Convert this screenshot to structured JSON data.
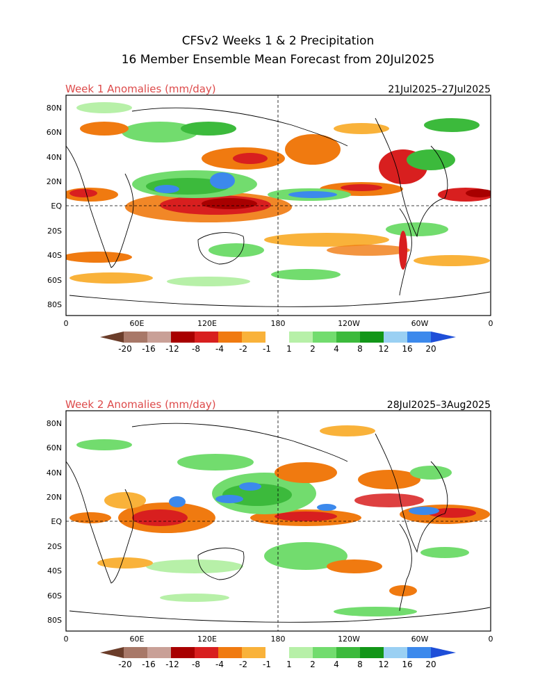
{
  "figure": {
    "title_line1": "CFSv2 Weeks 1 & 2 Precipitation",
    "title_line2": "16 Member Ensemble Mean Forecast from 20Jul2025"
  },
  "colors": {
    "dry": [
      "#6b3d2a",
      "#a87868",
      "#c9a097",
      "#a80000",
      "#d81f1f",
      "#f07a10",
      "#f9b23a"
    ],
    "neutral": "#ffffff",
    "wet": [
      "#b7f0a8",
      "#72dc6e",
      "#3cba3c",
      "#129618",
      "#9ad0f3",
      "#3c89ec",
      "#1e4ed8"
    ],
    "title_red": "#dd4a4a"
  },
  "panels": [
    {
      "title": "Week 1 Anomalies (mm/day)",
      "dates": "21Jul2025–27Jul2025",
      "lat_labels": [
        "80N",
        "60N",
        "40N",
        "20N",
        "EQ",
        "20S",
        "40S",
        "60S",
        "80S"
      ],
      "lon_labels": [
        "0",
        "60E",
        "120E",
        "180",
        "120W",
        "60W",
        "0"
      ]
    },
    {
      "title": "Week 2 Anomalies (mm/day)",
      "dates": "28Jul2025–3Aug2025",
      "lat_labels": [
        "80N",
        "60N",
        "40N",
        "20N",
        "EQ",
        "20S",
        "40S",
        "60S",
        "80S"
      ],
      "lon_labels": [
        "0",
        "60E",
        "120E",
        "180",
        "120W",
        "60W",
        "0"
      ]
    }
  ],
  "colorbar_labels": [
    "-20",
    "-16",
    "-12",
    "-8",
    "-4",
    "-2",
    "-1",
    "1",
    "2",
    "4",
    "8",
    "12",
    "16",
    "20"
  ]
}
